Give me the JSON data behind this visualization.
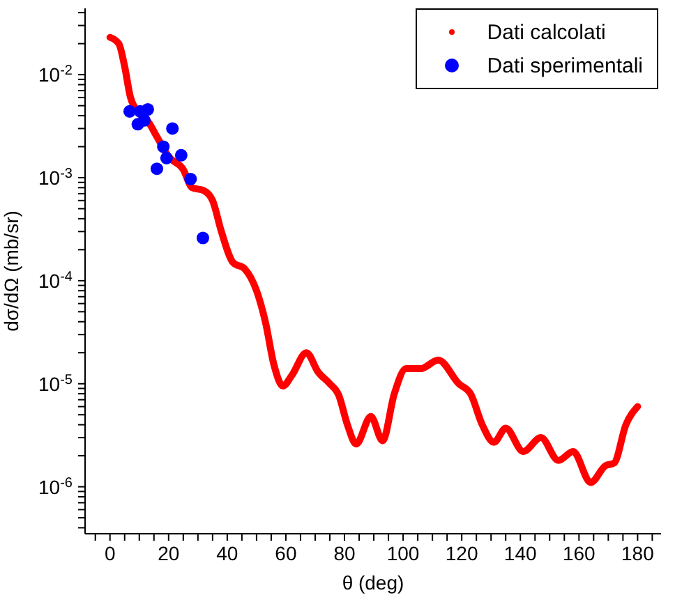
{
  "chart_data": {
    "type": "line",
    "xlabel": "θ (deg)",
    "ylabel": "dσ/dΩ (mb/sr)",
    "log": "y",
    "grid": false,
    "legend": "top right",
    "xlim": [
      -8.5,
      188
    ],
    "xticks": [
      {
        "value": -5,
        "label": null
      },
      0,
      {
        "value": 5,
        "label": null
      },
      {
        "value": 10,
        "label": null
      },
      {
        "value": 15,
        "label": null
      },
      20,
      {
        "value": 25,
        "label": null
      },
      {
        "value": 30,
        "label": null
      },
      {
        "value": 35,
        "label": null
      },
      40,
      {
        "value": 45,
        "label": null
      },
      {
        "value": 50,
        "label": null
      },
      {
        "value": 55,
        "label": null
      },
      60,
      {
        "value": 65,
        "label": null
      },
      {
        "value": 70,
        "label": null
      },
      {
        "value": 75,
        "label": null
      },
      80,
      {
        "value": 85,
        "label": null
      },
      {
        "value": 90,
        "label": null
      },
      {
        "value": 95,
        "label": null
      },
      100,
      {
        "value": 105,
        "label": null
      },
      {
        "value": 110,
        "label": null
      },
      {
        "value": 115,
        "label": null
      },
      120,
      {
        "value": 125,
        "label": null
      },
      {
        "value": 130,
        "label": null
      },
      {
        "value": 135,
        "label": null
      },
      140,
      {
        "value": 145,
        "label": null
      },
      {
        "value": 150,
        "label": null
      },
      {
        "value": 155,
        "label": null
      },
      160,
      {
        "value": 165,
        "label": null
      },
      {
        "value": 170,
        "label": null
      },
      {
        "value": 175,
        "label": null
      },
      180,
      {
        "value": 185,
        "label": null
      }
    ],
    "ylim": [
      3.5e-07,
      0.044
    ],
    "yticks": [
      {
        "value": 4e-07,
        "label": null
      },
      {
        "value": 5e-07,
        "label": null
      },
      {
        "value": 6e-07,
        "label": null
      },
      {
        "value": 7e-07,
        "label": null
      },
      {
        "value": 8e-07,
        "label": null
      },
      {
        "value": 9e-07,
        "label": null
      },
      {
        "value": 1e-06,
        "label": "10$^{-6}$"
      },
      {
        "value": 2e-06,
        "label": null
      },
      {
        "value": 3e-06,
        "label": null
      },
      {
        "value": 4e-06,
        "label": null
      },
      {
        "value": 5e-06,
        "label": null
      },
      {
        "value": 6e-06,
        "label": null
      },
      {
        "value": 7e-06,
        "label": null
      },
      {
        "value": 8e-06,
        "label": null
      },
      {
        "value": 9e-06,
        "label": null
      },
      {
        "value": 1e-05,
        "label": "10$^{-5}$"
      },
      {
        "value": 2e-05,
        "label": null
      },
      {
        "value": 3e-05,
        "label": null
      },
      {
        "value": 4e-05,
        "label": null
      },
      {
        "value": 5e-05,
        "label": null
      },
      {
        "value": 6e-05,
        "label": null
      },
      {
        "value": 7e-05,
        "label": null
      },
      {
        "value": 8e-05,
        "label": null
      },
      {
        "value": 9e-05,
        "label": null
      },
      {
        "value": 0.0001,
        "label": "10$^{-4}$"
      },
      {
        "value": 0.0002,
        "label": null
      },
      {
        "value": 0.0003,
        "label": null
      },
      {
        "value": 0.0004,
        "label": null
      },
      {
        "value": 0.0005,
        "label": null
      },
      {
        "value": 0.0006,
        "label": null
      },
      {
        "value": 0.0007,
        "label": null
      },
      {
        "value": 0.0008,
        "label": null
      },
      {
        "value": 0.0009,
        "label": null
      },
      {
        "value": 0.001,
        "label": "10$^{-3}$"
      },
      {
        "value": 0.002,
        "label": null
      },
      {
        "value": 0.003,
        "label": null
      },
      {
        "value": 0.004,
        "label": null
      },
      {
        "value": 0.005,
        "label": null
      },
      {
        "value": 0.006,
        "label": null
      },
      {
        "value": 0.007,
        "label": null
      },
      {
        "value": 0.008,
        "label": null
      },
      {
        "value": 0.009,
        "label": null
      },
      {
        "value": 0.01,
        "label": "10$^{-2}$"
      },
      {
        "value": 0.02,
        "label": null
      },
      {
        "value": 0.03,
        "label": null
      },
      {
        "value": 0.04,
        "label": null
      }
    ],
    "series": [
      {
        "name": "Dati calcolati",
        "color": "#ff0000",
        "marker": "none",
        "x": [
          0,
          3,
          5,
          7,
          10,
          13,
          16,
          20,
          25,
          28,
          32,
          35,
          38,
          42,
          46,
          50,
          53,
          56,
          59,
          62,
          67,
          71,
          75,
          78,
          81,
          84,
          89,
          93,
          97,
          101,
          106,
          112,
          119,
          123,
          127,
          131,
          135,
          141,
          147,
          153,
          158,
          164,
          169,
          172,
          176,
          180
        ],
        "values": [
          0.023,
          0.02,
          0.012,
          0.006,
          0.0042,
          0.0035,
          0.0025,
          0.0016,
          0.0012,
          0.0008,
          0.00075,
          0.0006,
          0.0003,
          0.00015,
          0.00013,
          8e-05,
          4e-05,
          1.5e-05,
          9.5e-06,
          1.2e-05,
          2e-05,
          1.3e-05,
          1e-05,
          7.8e-06,
          4e-06,
          2.6e-06,
          4.8e-06,
          2.8e-06,
          8e-06,
          1.4e-05,
          1.4e-05,
          1.7e-05,
          1e-05,
          8e-06,
          4e-06,
          2.7e-06,
          3.7e-06,
          2.2e-06,
          3e-06,
          1.8e-06,
          2.2e-06,
          1.1e-06,
          1.6e-06,
          1.7e-06,
          4e-06,
          6e-06
        ]
      },
      {
        "name": "Dati sperimentali",
        "type": "scatter",
        "color": "#0000ff",
        "marker": "circle",
        "x": [
          6.7,
          10.3,
          12.9,
          9.5,
          11.7,
          21.3,
          18.2,
          19.3,
          24.3,
          16,
          27.5,
          31.7
        ],
        "values": [
          0.0044,
          0.0044,
          0.0046,
          0.0033,
          0.0036,
          0.003,
          0.002,
          0.00155,
          0.00165,
          0.00122,
          0.00097,
          0.00026
        ]
      }
    ]
  }
}
